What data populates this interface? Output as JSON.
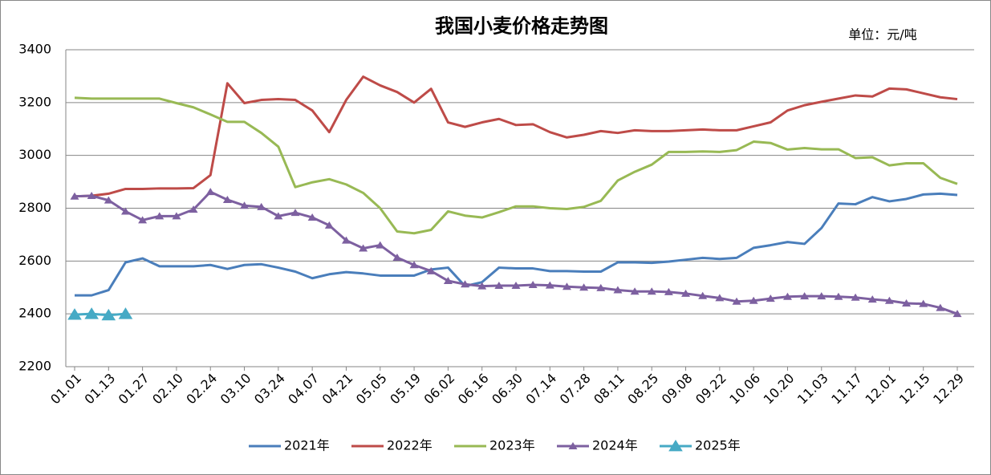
{
  "chart_data": {
    "type": "line",
    "title": "我国小麦价格走势图",
    "unit_label": "单位：元/吨",
    "categories": [
      "01.01",
      null,
      "01.13",
      null,
      "01.27",
      null,
      "02.10",
      null,
      "02.24",
      null,
      "03.10",
      null,
      "03.24",
      null,
      "04.07",
      null,
      "04.21",
      null,
      "05.05",
      null,
      "05.19",
      null,
      "06.02",
      null,
      "06.16",
      null,
      "06.30",
      null,
      "07.14",
      null,
      "07.28",
      null,
      "08.11",
      null,
      "08.25",
      null,
      "09.08",
      null,
      "09.22",
      null,
      "10.06",
      null,
      "10.20",
      null,
      "11.03",
      null,
      "11.17",
      null,
      "12.01",
      null,
      "12.15",
      null,
      "12.29"
    ],
    "series": [
      {
        "name": "2021年",
        "color": "#4a7ebb",
        "marker": "none",
        "values": [
          2470,
          2470,
          2490,
          2595,
          2610,
          2580,
          2580,
          2580,
          2585,
          2570,
          2585,
          2588,
          2575,
          2560,
          2535,
          2550,
          2558,
          2553,
          2545,
          2545,
          2545,
          2568,
          2575,
          2505,
          2520,
          2575,
          2572,
          2572,
          2562,
          2562,
          2560,
          2560,
          2595,
          2595,
          2593,
          2598,
          2605,
          2612,
          2608,
          2612,
          2650,
          2660,
          2672,
          2665,
          2725,
          2818,
          2815,
          2842,
          2826,
          2835,
          2852,
          2855,
          2850
        ]
      },
      {
        "name": "2022年",
        "color": "#be4b48",
        "marker": "none",
        "values": [
          2845,
          2847,
          2855,
          2873,
          2873,
          2875,
          2875,
          2876,
          2925,
          3273,
          3198,
          3210,
          3213,
          3210,
          3170,
          3088,
          3210,
          3298,
          3265,
          3240,
          3200,
          3252,
          3125,
          3108,
          3125,
          3138,
          3115,
          3118,
          3088,
          3068,
          3078,
          3092,
          3085,
          3095,
          3092,
          3092,
          3095,
          3098,
          3095,
          3095,
          3110,
          3125,
          3170,
          3190,
          3203,
          3215,
          3227,
          3223,
          3253,
          3250,
          3235,
          3220,
          3213
        ]
      },
      {
        "name": "2023年",
        "color": "#98b954",
        "marker": "none",
        "values": [
          3218,
          3215,
          3215,
          3215,
          3215,
          3215,
          3198,
          3182,
          3155,
          3127,
          3127,
          3085,
          3033,
          2880,
          2898,
          2910,
          2890,
          2858,
          2800,
          2712,
          2705,
          2718,
          2788,
          2772,
          2765,
          2785,
          2807,
          2807,
          2800,
          2797,
          2805,
          2828,
          2905,
          2938,
          2965,
          3013,
          3013,
          3015,
          3013,
          3020,
          3052,
          3047,
          3022,
          3028,
          3023,
          3023,
          2990,
          2993,
          2962,
          2970,
          2970,
          2915,
          2892
        ]
      },
      {
        "name": "2024年",
        "color": "#7d60a0",
        "marker": "triangle",
        "values": [
          2845,
          2847,
          2830,
          2788,
          2755,
          2770,
          2770,
          2795,
          2862,
          2832,
          2810,
          2805,
          2770,
          2783,
          2765,
          2735,
          2678,
          2648,
          2660,
          2613,
          2585,
          2562,
          2525,
          2512,
          2505,
          2507,
          2507,
          2510,
          2508,
          2503,
          2500,
          2498,
          2490,
          2485,
          2485,
          2483,
          2477,
          2468,
          2460,
          2447,
          2450,
          2458,
          2465,
          2467,
          2467,
          2465,
          2462,
          2455,
          2450,
          2440,
          2438,
          2423,
          2400
        ]
      },
      {
        "name": "2025年",
        "color": "#46aac5",
        "marker": "triangle-large",
        "values": [
          2397,
          2400,
          2395,
          2400,
          null,
          null,
          null,
          null,
          null,
          null,
          null,
          null,
          null,
          null,
          null,
          null,
          null,
          null,
          null,
          null,
          null,
          null,
          null,
          null,
          null,
          null,
          null,
          null,
          null,
          null,
          null,
          null,
          null,
          null,
          null,
          null,
          null,
          null,
          null,
          null,
          null,
          null,
          null,
          null,
          null,
          null,
          null,
          null,
          null,
          null,
          null,
          null,
          null
        ]
      }
    ],
    "ylim": [
      2200,
      3400
    ],
    "yticks": [
      2200,
      2400,
      2600,
      2800,
      3000,
      3200,
      3400
    ],
    "grid": true,
    "legend": "bottom"
  }
}
